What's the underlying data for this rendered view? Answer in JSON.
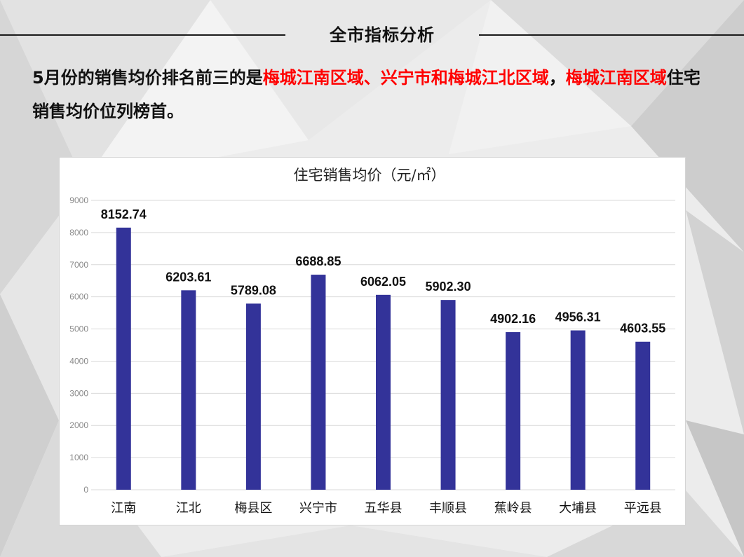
{
  "header": {
    "title": "全市指标分析"
  },
  "summary": {
    "part1": "5月份的销售均价排名前三的是",
    "highlight1": "梅城江南区域、兴宁市和梅城江北区域",
    "part2": "，",
    "highlight2": "梅城江南区域",
    "part3": "住宅销售均价位列榜首。"
  },
  "colors": {
    "bar": "#333399",
    "highlight_text": "#ff0000",
    "gridline": "#d9d9d9"
  },
  "chart_data": {
    "type": "bar",
    "title": "住宅销售均价（元/㎡）",
    "xlabel": "",
    "ylabel": "",
    "categories": [
      "江南",
      "江北",
      "梅县区",
      "兴宁市",
      "五华县",
      "丰顺县",
      "蕉岭县",
      "大埔县",
      "平远县"
    ],
    "values": [
      8152.74,
      6203.61,
      5789.08,
      6688.85,
      6062.05,
      5902.3,
      4902.16,
      4956.31,
      4603.55
    ],
    "value_labels": [
      "8152.74",
      "6203.61",
      "5789.08",
      "6688.85",
      "6062.05",
      "5902.30",
      "4902.16",
      "4956.31",
      "4603.55"
    ],
    "ylim": [
      0,
      9000
    ],
    "yticks": [
      0,
      1000,
      2000,
      3000,
      4000,
      5000,
      6000,
      7000,
      8000,
      9000
    ],
    "grid": true,
    "legend": "none"
  }
}
